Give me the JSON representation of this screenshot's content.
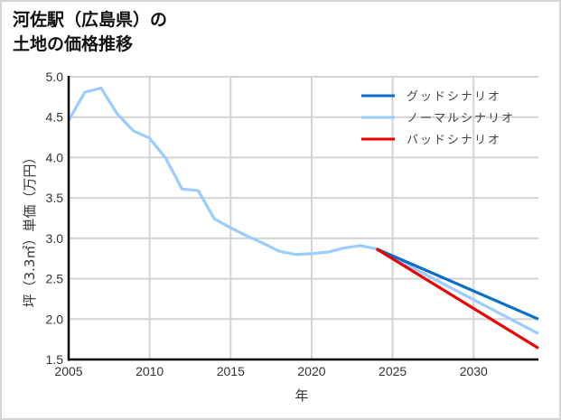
{
  "title_lines": [
    "河佐駅（広島県）の",
    "土地の価格推移"
  ],
  "chart_data": {
    "type": "line",
    "title": "河佐駅（広島県）の土地の価格推移",
    "xlabel": "年",
    "ylabel": "坪（3.3㎡）単価（万円）",
    "xlim": [
      2005,
      2034
    ],
    "ylim": [
      1.5,
      5.0
    ],
    "x_ticks": [
      2005,
      2010,
      2015,
      2020,
      2025,
      2030
    ],
    "y_ticks": [
      1.5,
      2.0,
      2.5,
      3.0,
      3.5,
      4.0,
      4.5,
      5.0
    ],
    "y_tick_labels": [
      "1.5",
      "2.0",
      "2.5",
      "3.0",
      "3.5",
      "4.0",
      "4.5",
      "5.0"
    ],
    "grid": true,
    "legend_position": "upper right",
    "series": [
      {
        "name": "グッドシナリオ",
        "color": "#0a6fc8",
        "x": [
          2024,
          2034
        ],
        "values": [
          2.87,
          2.0
        ]
      },
      {
        "name": "ノーマルシナリオ",
        "color": "#99ccff",
        "x": [
          2005,
          2006,
          2007,
          2008,
          2009,
          2010,
          2011,
          2012,
          2013,
          2014,
          2015,
          2016,
          2017,
          2018,
          2019,
          2020,
          2021,
          2022,
          2023,
          2024,
          2034
        ],
        "values": [
          4.46,
          4.81,
          4.86,
          4.54,
          4.33,
          4.24,
          3.99,
          3.61,
          3.59,
          3.24,
          3.13,
          3.03,
          2.94,
          2.84,
          2.8,
          2.81,
          2.83,
          2.88,
          2.91,
          2.87,
          1.82
        ]
      },
      {
        "name": "バッドシナリオ",
        "color": "#ee0000",
        "x": [
          2024,
          2034
        ],
        "values": [
          2.87,
          1.64
        ]
      }
    ]
  }
}
